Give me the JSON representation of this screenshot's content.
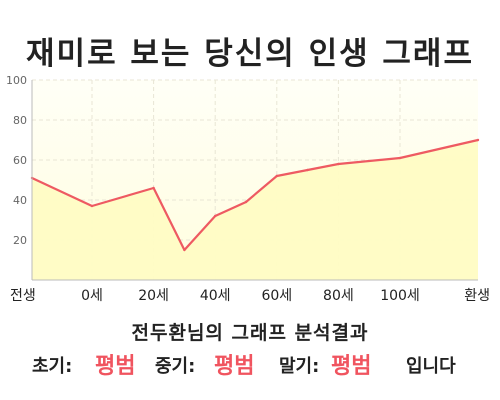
{
  "title": "재미로 보는 당신의 인생 그래프",
  "caption": "전두환님의 그래프 분석결과",
  "verdict": {
    "early_label": "초기:",
    "early_value": "평범",
    "mid_label": "중기:",
    "mid_value": "평범",
    "late_label": "말기:",
    "late_value": "평범",
    "suffix": "입니다"
  },
  "colors": {
    "line": "#ee5a62",
    "fill": "#fffcc4",
    "fill_top": "#fffff0",
    "grid": "#e8e6d5",
    "axis": "#bbbbbb",
    "result_text": "#f0545f"
  },
  "chart_data": {
    "type": "area",
    "title": "",
    "xlabel": "",
    "ylabel": "",
    "x_tick_labels": [
      "전생",
      "0세",
      "20세",
      "40세",
      "60세",
      "80세",
      "100세",
      "환생"
    ],
    "y_ticks": [
      20,
      40,
      60,
      80,
      100
    ],
    "ylim": [
      0,
      100
    ],
    "grid": true,
    "series": [
      {
        "points": [
          {
            "x": "전생",
            "y": 51
          },
          {
            "x": "0세",
            "y": 37
          },
          {
            "x": "20세",
            "y": 46
          },
          {
            "x": "30세",
            "y": 15
          },
          {
            "x": "40세",
            "y": 32
          },
          {
            "x": "50세",
            "y": 39
          },
          {
            "x": "60세",
            "y": 52
          },
          {
            "x": "70세",
            "y": 55
          },
          {
            "x": "80세",
            "y": 58
          },
          {
            "x": "100세",
            "y": 61
          },
          {
            "x": "환생",
            "y": 70
          }
        ]
      }
    ]
  }
}
